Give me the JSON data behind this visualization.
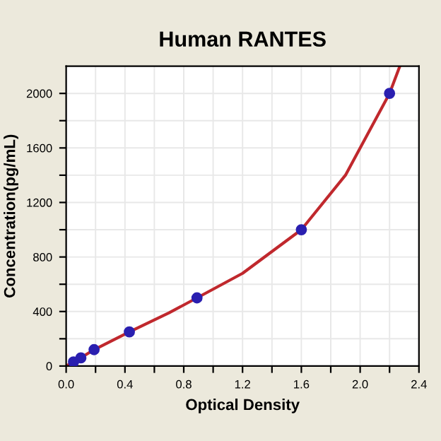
{
  "chart_data": {
    "type": "scatter",
    "title": "Human RANTES",
    "xlabel": "Optical Density",
    "ylabel": "Concentration(pg/mL)",
    "xlim": [
      0,
      2.4
    ],
    "ylim": [
      0,
      2200
    ],
    "xticks": [
      {
        "value": 0,
        "label": "0.0"
      },
      {
        "value": 0.2,
        "label": null
      },
      0.4,
      {
        "value": 0.6,
        "label": null
      },
      0.8,
      {
        "value": 1.0,
        "label": null
      },
      1.2,
      {
        "value": 1.4,
        "label": null
      },
      1.6,
      {
        "value": 1.8,
        "label": null
      },
      {
        "value": 2,
        "label": "2.0"
      },
      {
        "value": 2.2,
        "label": null
      },
      2.4
    ],
    "yticks": [
      0,
      {
        "value": 200,
        "label": null
      },
      400,
      {
        "value": 600,
        "label": null
      },
      800,
      {
        "value": 1000,
        "label": null
      },
      1200,
      {
        "value": 1400,
        "label": null
      },
      1600,
      {
        "value": 1800,
        "label": null
      },
      2000
    ],
    "grid": true,
    "series": [
      {
        "type": "line",
        "marker": "none",
        "color": "#c0282d",
        "x": [
          0,
          0.05,
          0.1,
          0.19,
          0.43,
          0.7,
          0.89,
          1.2,
          1.6,
          1.9,
          2.2,
          2.27
        ],
        "values": [
          0,
          30,
          60,
          120,
          250,
          390,
          500,
          680,
          1000,
          1400,
          2000,
          2200
        ]
      },
      {
        "marker": "circle",
        "color": "#2a1fb0",
        "x": [
          0.05,
          0.1,
          0.19,
          0.43,
          0.89,
          1.6,
          2.2
        ],
        "values": [
          30,
          60,
          120,
          250,
          500,
          1000,
          2000
        ]
      }
    ]
  }
}
